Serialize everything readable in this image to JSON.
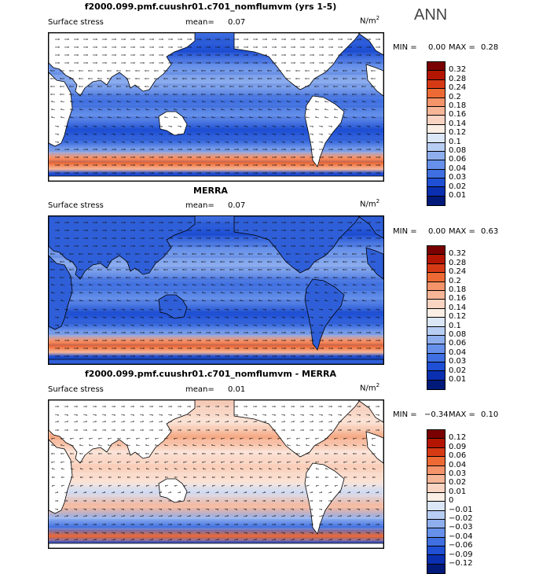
{
  "season": "ANN",
  "panels": [
    {
      "title": "f2000.099.pmf.cuushr01.c701_nomflumvm (yrs 1-5)",
      "variable": "Surface stress",
      "mean_label": "mean=",
      "mean_value": "0.07",
      "unit": "N/m",
      "unit_exp": "2",
      "min_label": "MIN =",
      "min_value": "0.00",
      "max_label": "MAX =",
      "max_value": "0.28",
      "levels": [
        "0.32",
        "0.28",
        "0.24",
        "0.2",
        "0.18",
        "0.16",
        "0.14",
        "0.12",
        "0.1",
        "0.08",
        "0.06",
        "0.04",
        "0.03",
        "0.02",
        "0.01"
      ],
      "colors": [
        "#7a0000",
        "#b31500",
        "#d63a14",
        "#ee6a35",
        "#f5936b",
        "#f7b698",
        "#f9d4c2",
        "#fbeee5",
        "#dbe6f7",
        "#b7cdf3",
        "#8eaeee",
        "#6690e9",
        "#3f6fe0",
        "#1e4fd4",
        "#0a2fb0",
        "#001a7a"
      ],
      "pattern": "model"
    },
    {
      "title": "MERRA",
      "variable": "Surface stress",
      "mean_label": "mean=",
      "mean_value": "0.07",
      "unit": "N/m",
      "unit_exp": "2",
      "min_label": "MIN =",
      "min_value": "0.00",
      "max_label": "MAX =",
      "max_value": "0.63",
      "levels": [
        "0.32",
        "0.28",
        "0.24",
        "0.2",
        "0.18",
        "0.16",
        "0.14",
        "0.12",
        "0.1",
        "0.08",
        "0.06",
        "0.04",
        "0.03",
        "0.02",
        "0.01"
      ],
      "colors": [
        "#7a0000",
        "#b31500",
        "#d63a14",
        "#ee6a35",
        "#f5936b",
        "#f7b698",
        "#f9d4c2",
        "#fbeee5",
        "#dbe6f7",
        "#b7cdf3",
        "#8eaeee",
        "#6690e9",
        "#3f6fe0",
        "#1e4fd4",
        "#0a2fb0",
        "#001a7a"
      ],
      "pattern": "merra"
    },
    {
      "title": "f2000.099.pmf.cuushr01.c701_nomflumvm - MERRA",
      "variable": "Surface stress",
      "mean_label": "mean=",
      "mean_value": "0.01",
      "unit": "N/m",
      "unit_exp": "2",
      "min_label": "MIN =",
      "min_value": "−0.34",
      "max_label": "MAX =",
      "max_value": "0.10",
      "levels": [
        "0.12",
        "0.09",
        "0.06",
        "0.04",
        "0.03",
        "0.02",
        "0.01",
        "0",
        "−0.01",
        "−0.02",
        "−0.03",
        "−0.04",
        "−0.06",
        "−0.09",
        "−0.12"
      ],
      "colors": [
        "#7a0000",
        "#b31500",
        "#d63a14",
        "#ee6a35",
        "#f5936b",
        "#f7b698",
        "#f9d4c2",
        "#fbeee5",
        "#dbe6f7",
        "#b7cdf3",
        "#8eaeee",
        "#6690e9",
        "#3f6fe0",
        "#1e4fd4",
        "#0a2fb0",
        "#001a7a"
      ],
      "pattern": "diff"
    }
  ]
}
